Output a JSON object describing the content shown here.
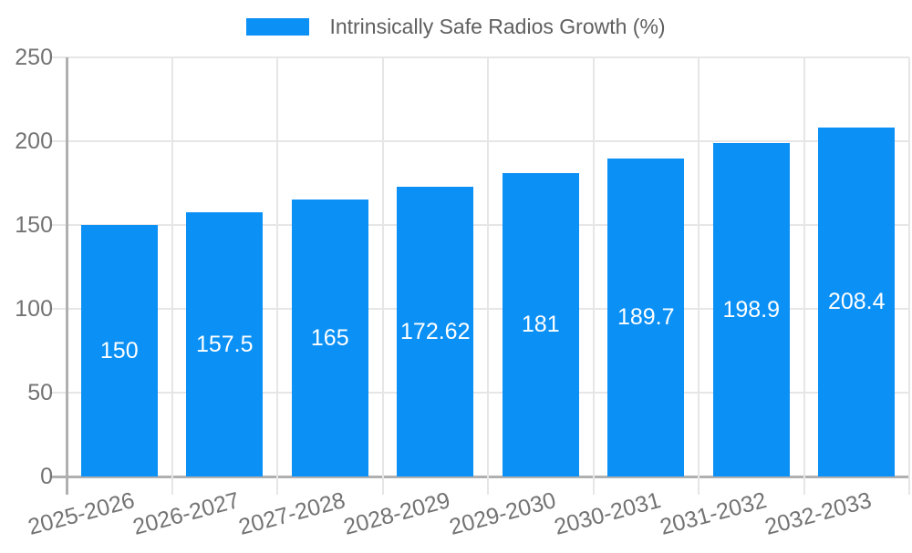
{
  "page": {
    "background": "#ffffff"
  },
  "legend": {
    "label": "Intrinsically Safe Radios Growth (%)",
    "swatch_color": "#0b90f6"
  },
  "chart_data": {
    "type": "bar",
    "title": "",
    "categories": [
      "2025-2026",
      "2026-2027",
      "2027-2028",
      "2028-2029",
      "2029-2030",
      "2030-2031",
      "2031-2032",
      "2032-2033"
    ],
    "series": [
      {
        "name": "Intrinsically Safe Radios Growth (%)",
        "values": [
          150,
          157.5,
          165,
          172.62,
          181,
          189.7,
          198.9,
          208.4
        ]
      }
    ],
    "value_labels": [
      "150",
      "157.5",
      "165",
      "172.62",
      "181",
      "189.7",
      "198.9",
      "208.4"
    ],
    "xlabel": "",
    "ylabel": "",
    "ylim": [
      0,
      250
    ],
    "yticks": [
      0,
      50,
      100,
      150,
      200,
      250
    ],
    "grid": true,
    "legend_position": "top-center",
    "x_label_rotation_deg": -15,
    "bar_color": "#0b90f6",
    "colors": {
      "grid_line": "#e6e6e6",
      "axis_line": "#b0b0b0",
      "tick_text": "#737373",
      "legend_text": "#5f5f5f",
      "value_label_text": "#ffffff"
    }
  }
}
